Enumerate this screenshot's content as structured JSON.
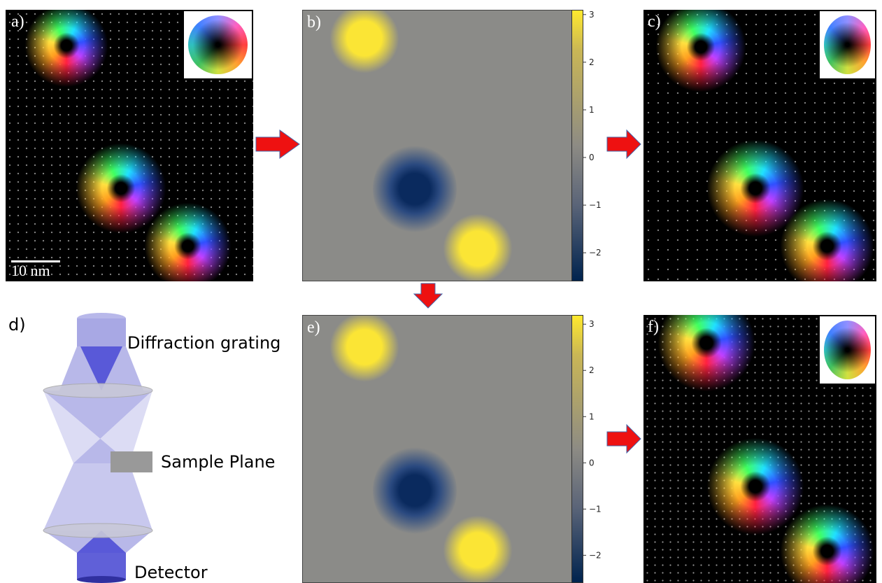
{
  "panels": {
    "a": {
      "label": "a)",
      "scale_bar": "10 nm"
    },
    "b": {
      "label": "b)"
    },
    "c": {
      "label": "c)"
    },
    "d": {
      "label": "d)",
      "labels": [
        "Diffraction grating",
        "Sample Plane",
        "Detector"
      ]
    },
    "e": {
      "label": "e)"
    },
    "f": {
      "label": "f)"
    }
  },
  "colorbars": [
    {
      "lim": [
        -2.6,
        3.1
      ],
      "ticks": [
        3,
        2,
        1,
        0,
        {
          "value": -1,
          "label": "−1"
        },
        {
          "value": -2,
          "label": "−2"
        }
      ]
    },
    {
      "lim": [
        -2.6,
        3.2
      ],
      "ticks": [
        3,
        2,
        1,
        0,
        {
          "value": -1,
          "label": "−1"
        },
        {
          "value": -2,
          "label": "−2"
        }
      ]
    }
  ]
}
